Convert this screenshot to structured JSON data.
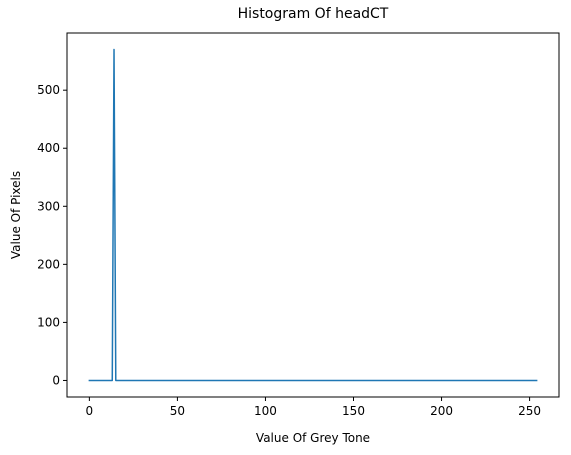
{
  "chart_data": {
    "type": "line",
    "title": "Histogram Of headCT",
    "xlabel": "Value Of Grey Tone",
    "ylabel": "Value Of Pixels",
    "xlim": [
      -12.7,
      266.7
    ],
    "ylim": [
      -28.5,
      598.5
    ],
    "xticks": [
      0,
      50,
      100,
      150,
      200,
      250
    ],
    "yticks": [
      0,
      100,
      200,
      300,
      400,
      500
    ],
    "grid": false,
    "series": [
      {
        "color": "#1f77b4",
        "x": [
          0,
          13,
          14,
          15,
          254
        ],
        "y": [
          0,
          0,
          570,
          0,
          0
        ]
      }
    ]
  }
}
